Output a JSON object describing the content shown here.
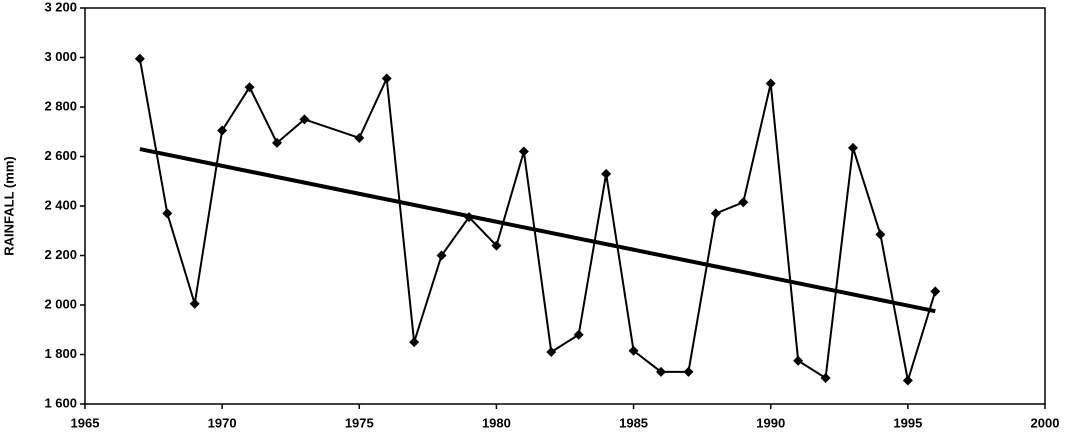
{
  "chart_data": {
    "type": "line",
    "y_label": "RAINFALL (mm)",
    "x": [
      1967,
      1968,
      1969,
      1970,
      1971,
      1972,
      1973,
      1975,
      1976,
      1977,
      1978,
      1979,
      1980,
      1981,
      1982,
      1983,
      1984,
      1985,
      1986,
      1987,
      1988,
      1989,
      1990,
      1991,
      1992,
      1993,
      1994,
      1995,
      1996
    ],
    "values": [
      2995,
      2370,
      2005,
      2705,
      2880,
      2655,
      2750,
      2675,
      2915,
      1850,
      2200,
      2355,
      2240,
      2620,
      1810,
      1880,
      2530,
      1815,
      1730,
      1730,
      2370,
      2415,
      2895,
      1775,
      1705,
      2635,
      2285,
      1695,
      2055
    ],
    "color": "#000000",
    "trend": {
      "x": [
        1967,
        1996
      ],
      "values": [
        2630,
        1975
      ],
      "color": "#000000"
    },
    "xlim": [
      1965,
      2000
    ],
    "xticks": [
      1965,
      1970,
      1975,
      1980,
      1985,
      1990,
      1995,
      2000
    ],
    "ylim": [
      1600,
      3200
    ],
    "yticks": [
      {
        "value": 1600,
        "label": "1 600"
      },
      {
        "value": 1800,
        "label": "1 800"
      },
      {
        "value": 2000,
        "label": "2 000"
      },
      {
        "value": 2200,
        "label": "2 200"
      },
      {
        "value": 2400,
        "label": "2 400"
      },
      {
        "value": 2600,
        "label": "2 600"
      },
      {
        "value": 2800,
        "label": "2 800"
      },
      {
        "value": 3000,
        "label": "3 000"
      },
      {
        "value": 3200,
        "label": "3 200"
      }
    ]
  }
}
